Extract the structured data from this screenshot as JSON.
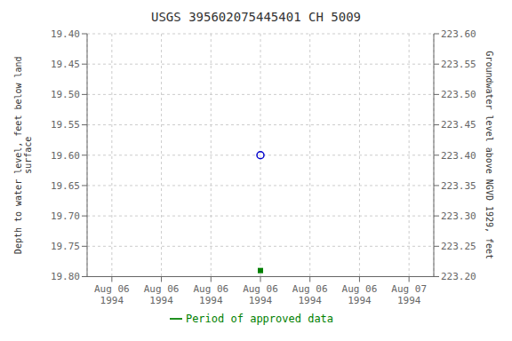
{
  "chart_data": {
    "type": "scatter",
    "title": "USGS 395602075445401 CH  5009",
    "y_label": "Depth to water level, feet below land\nsurface",
    "y2_label": "Groundwater level above NGVD 1929, feet",
    "categories": [
      "Aug 06\n1994",
      "Aug 06\n1994",
      "Aug 06\n1994",
      "Aug 06\n1994",
      "Aug 06\n1994",
      "Aug 06\n1994",
      "Aug 07\n1994"
    ],
    "series": [
      {
        "color": "#0000cc",
        "marker": "open_circle",
        "values": [
          null,
          null,
          null,
          19.6,
          null,
          null,
          null
        ]
      },
      {
        "name": "Period of approved data",
        "color": "#008000",
        "marker": "square",
        "values": [
          null,
          null,
          null,
          19.79,
          null,
          null,
          null
        ]
      }
    ],
    "ylim": [
      19.8,
      19.4
    ],
    "yticks": [
      {
        "value": 19.4,
        "label": "19.40"
      },
      19.45,
      {
        "value": 19.5,
        "label": "19.50"
      },
      19.55,
      {
        "value": 19.6,
        "label": "19.60"
      },
      19.65,
      {
        "value": 19.7,
        "label": "19.70"
      },
      19.75,
      {
        "value": 19.8,
        "label": "19.80"
      }
    ],
    "y2lim": [
      223.2,
      223.6
    ],
    "y2ticks": [
      {
        "value": 223.2,
        "label": "223.20"
      },
      223.25,
      {
        "value": 223.3,
        "label": "223.30"
      },
      223.35,
      {
        "value": 223.4,
        "label": "223.40"
      },
      223.45,
      {
        "value": 223.5,
        "label": "223.50"
      },
      223.55,
      {
        "value": 223.6,
        "label": "223.60"
      }
    ],
    "grid": true,
    "legend": "bottom"
  }
}
